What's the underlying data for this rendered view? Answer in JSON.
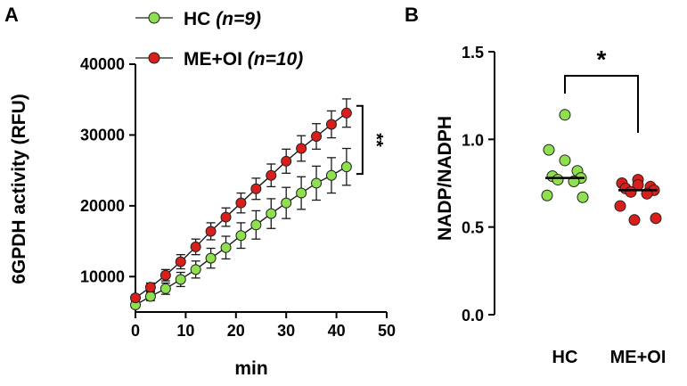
{
  "colors": {
    "hc": "#8ee04f",
    "me_oi": "#d91f1a",
    "marker_edge": "#222222",
    "axis": "#000000"
  },
  "chart_data": [
    {
      "panel": "A",
      "type": "line",
      "xlabel": "min",
      "ylabel": "6GPDH activity (RFU)",
      "xlim": [
        0,
        50
      ],
      "ylim": [
        5000,
        40000
      ],
      "x_ticks": [
        0,
        10,
        20,
        30,
        40,
        50
      ],
      "y_ticks": [
        10000,
        20000,
        30000,
        40000
      ],
      "x_tick_labels": [
        "0",
        "10",
        "20",
        "30",
        "40",
        "50"
      ],
      "y_tick_labels": [
        "10000",
        "20000",
        "30000",
        "40000"
      ],
      "grid": false,
      "legend_position": "top",
      "legend": [
        {
          "label": "HC",
          "n_text": "(n=9)",
          "color": "hc"
        },
        {
          "label": "ME+OI",
          "n_text": "(n=10)",
          "color": "me_oi"
        }
      ],
      "x": [
        0,
        3,
        6,
        9,
        12,
        15,
        18,
        21,
        24,
        27,
        30,
        33,
        36,
        39,
        42
      ],
      "series": [
        {
          "name": "HC",
          "color": "hc",
          "values": [
            6000,
            7200,
            8300,
            9600,
            11000,
            12600,
            14100,
            15800,
            17300,
            18900,
            20400,
            21800,
            23200,
            24300,
            25500
          ],
          "errors": [
            400,
            600,
            800,
            1000,
            1200,
            1400,
            1600,
            1800,
            2000,
            2100,
            2200,
            2300,
            2400,
            2500,
            2600
          ]
        },
        {
          "name": "ME+OI",
          "color": "me_oi",
          "values": [
            7000,
            8500,
            10200,
            12100,
            14200,
            16400,
            18400,
            20400,
            22400,
            24300,
            26300,
            28100,
            29800,
            31500,
            33100
          ],
          "errors": [
            400,
            600,
            800,
            1000,
            1100,
            1200,
            1300,
            1400,
            1500,
            1600,
            1700,
            1800,
            1800,
            1900,
            2000
          ]
        }
      ],
      "significance": {
        "label": "**",
        "between": [
          "HC",
          "ME+OI"
        ],
        "at_x": 42
      }
    },
    {
      "panel": "B",
      "type": "scatter",
      "categories": [
        "HC",
        "ME+OI"
      ],
      "ylabel": "NADP/NADPH",
      "xlabel": "",
      "ylim": [
        0,
        1.5
      ],
      "y_ticks": [
        0,
        0.5,
        1.0,
        1.5
      ],
      "y_tick_labels": [
        "0.0",
        "0.5",
        "1.0",
        "1.5"
      ],
      "grid": false,
      "series": [
        {
          "name": "HC",
          "color": "hc",
          "values": [
            1.14,
            0.94,
            0.88,
            0.82,
            0.79,
            0.78,
            0.77,
            0.76,
            0.68,
            0.67
          ],
          "median": 0.78
        },
        {
          "name": "ME+OI",
          "color": "me_oi",
          "values": [
            0.77,
            0.75,
            0.74,
            0.73,
            0.72,
            0.71,
            0.7,
            0.69,
            0.62,
            0.55,
            0.54
          ],
          "median": 0.71
        }
      ],
      "significance": {
        "label": "*",
        "between": [
          "HC",
          "ME+OI"
        ]
      }
    }
  ]
}
